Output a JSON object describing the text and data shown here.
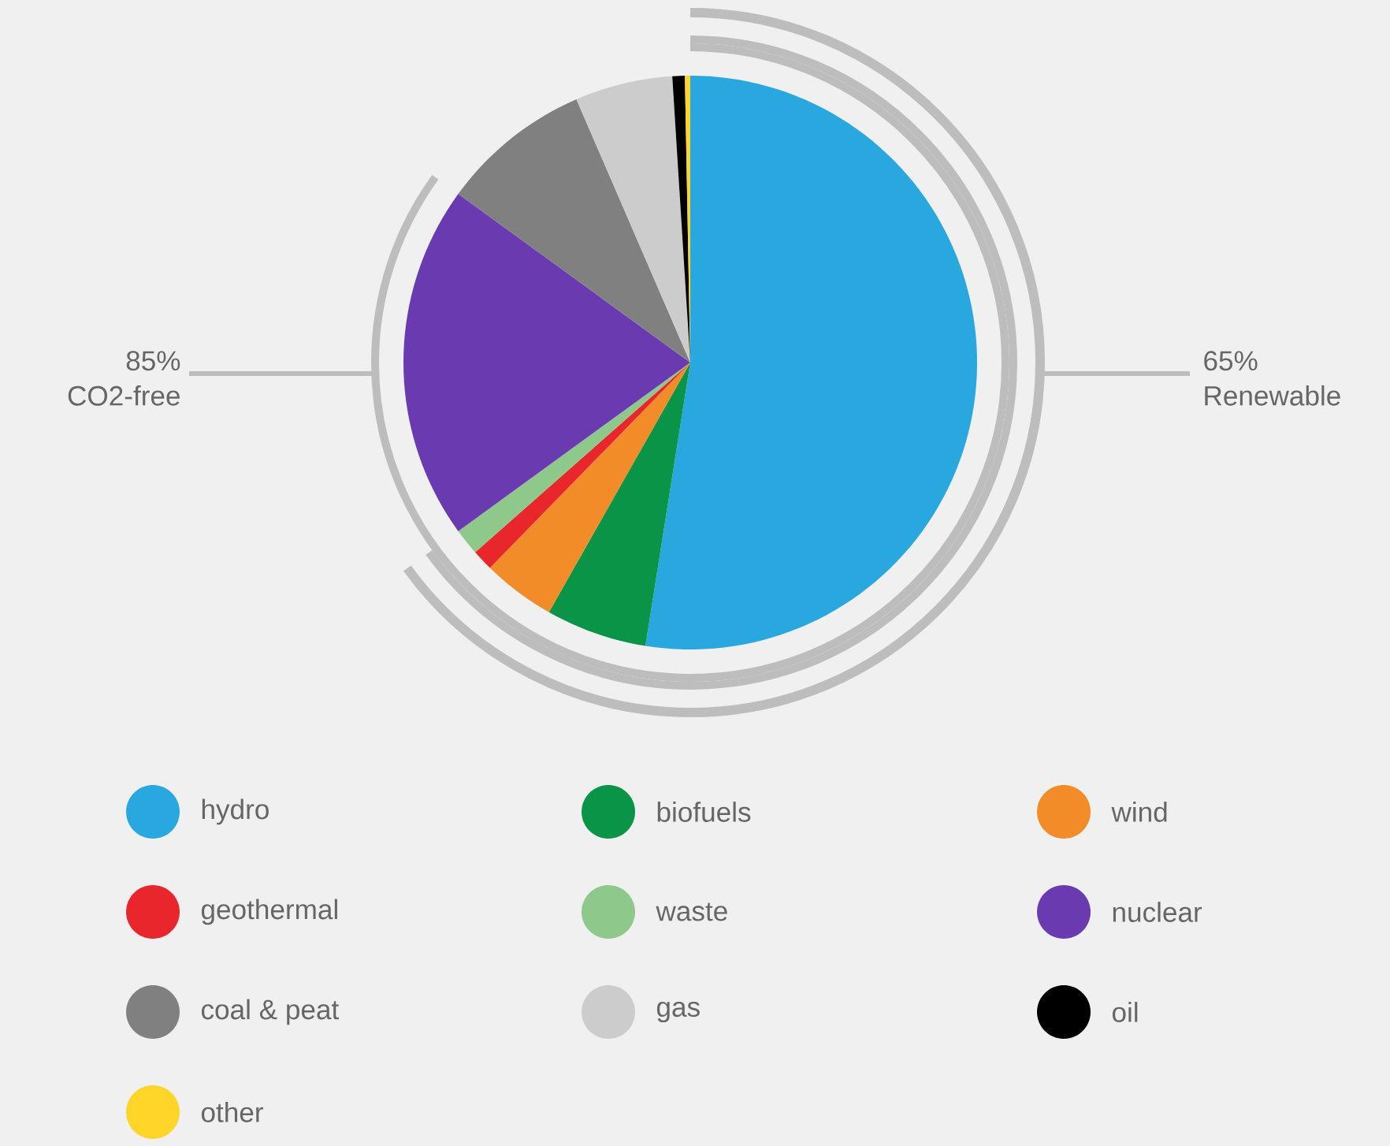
{
  "chart_data": {
    "type": "pie",
    "categories": [
      "hydro",
      "biofuels",
      "wind",
      "geothermal",
      "waste",
      "nuclear",
      "coal & peat",
      "gas",
      "oil",
      "other"
    ],
    "values": [
      52.5,
      5.7,
      4.1,
      1.2,
      1.5,
      20,
      8.5,
      5.5,
      0.7,
      0.3
    ],
    "colors": [
      "#29a8e0",
      "#0a9447",
      "#f28c28",
      "#e8262b",
      "#8ec98b",
      "#6a3bb0",
      "#808080",
      "#cccccc",
      "#000000",
      "#ffd52a"
    ],
    "legend": "bottom",
    "annotations": [
      "85% CO2-free",
      "65% Renewable"
    ]
  }
}
